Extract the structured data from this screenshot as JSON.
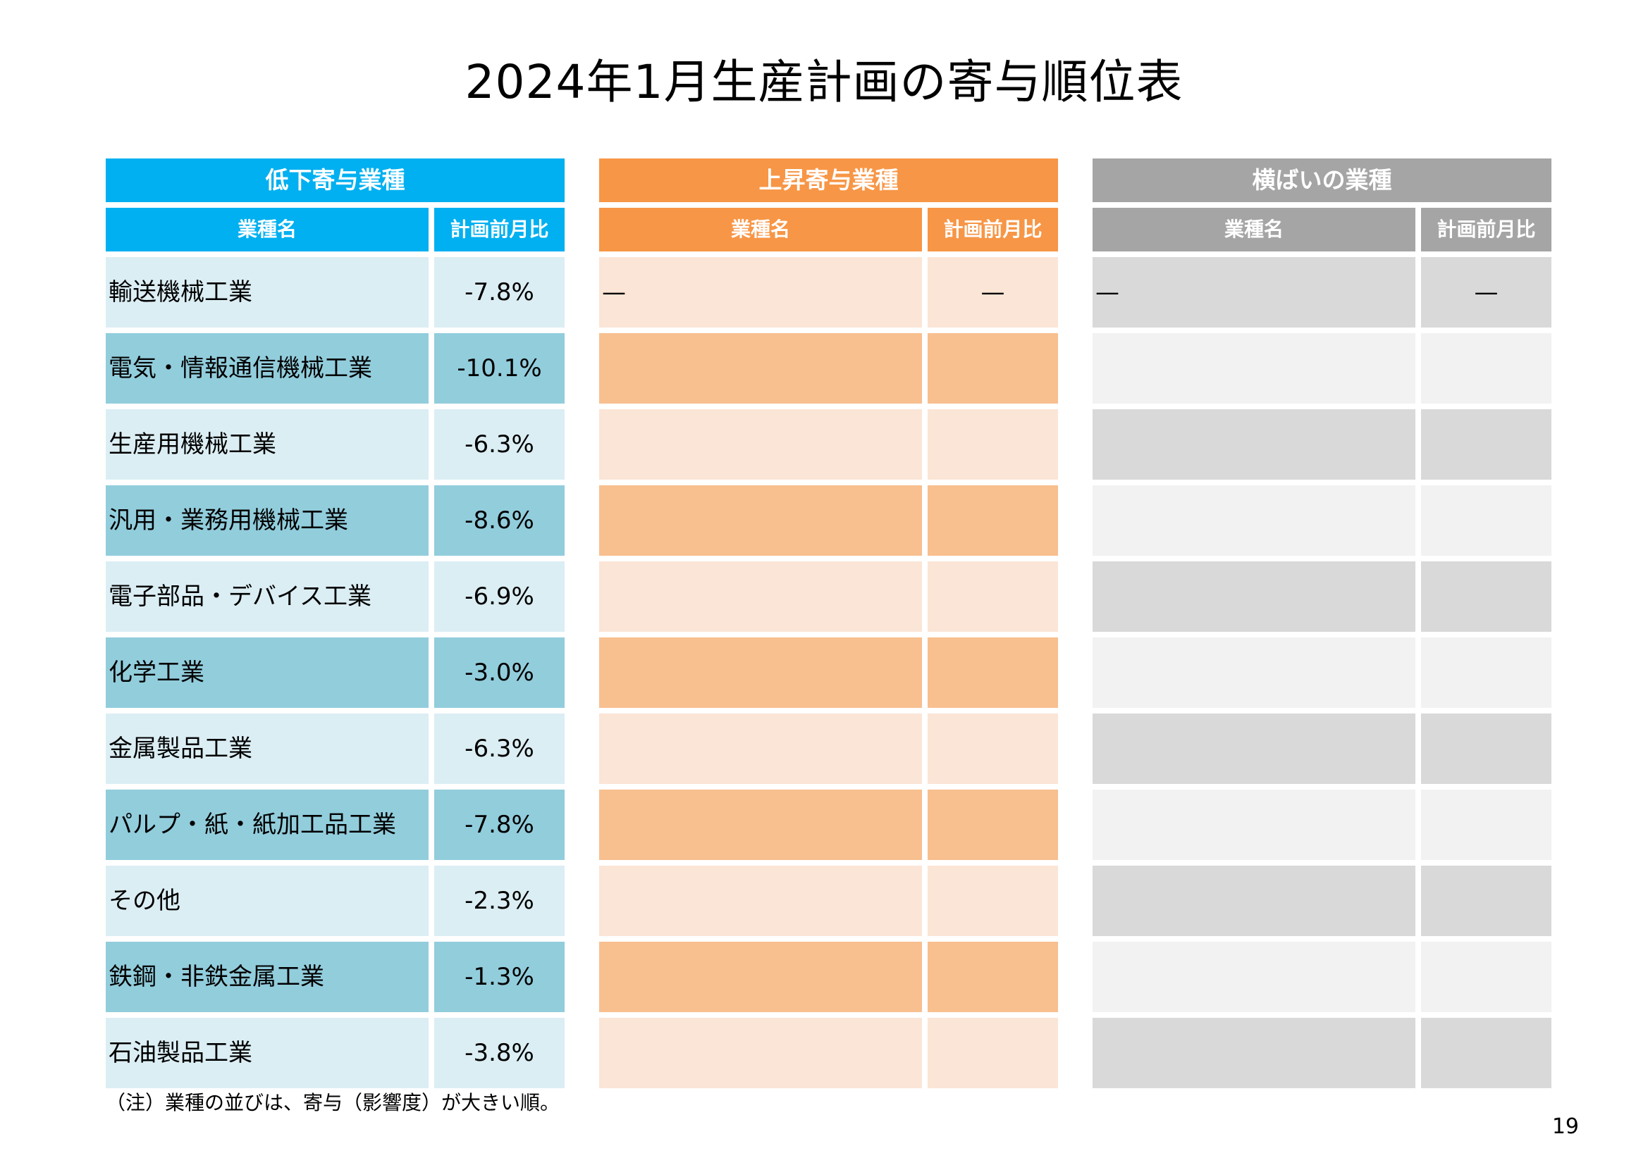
{
  "title": "2024年1月生産計画の寄与順位表",
  "panels": {
    "decrease": {
      "header": "低下寄与業種",
      "col_name": "業種名",
      "col_value": "計画前月比",
      "rows": [
        {
          "name": "輸送機械工業",
          "value": "-7.8%"
        },
        {
          "name": "電気・情報通信機械工業",
          "value": "-10.1%"
        },
        {
          "name": "生産用機械工業",
          "value": "-6.3%"
        },
        {
          "name": "汎用・業務用機械工業",
          "value": "-8.6%"
        },
        {
          "name": "電子部品・デバイス工業",
          "value": "-6.9%"
        },
        {
          "name": "化学工業",
          "value": "-3.0%"
        },
        {
          "name": "金属製品工業",
          "value": "-6.3%"
        },
        {
          "name": "パルプ・紙・紙加工品工業",
          "value": "-7.8%"
        },
        {
          "name": "その他",
          "value": "-2.3%"
        },
        {
          "name": "鉄鋼・非鉄金属工業",
          "value": "-1.3%"
        },
        {
          "name": "石油製品工業",
          "value": "-3.8%"
        }
      ]
    },
    "increase": {
      "header": "上昇寄与業種",
      "col_name": "業種名",
      "col_value": "計画前月比",
      "rows": [
        {
          "name": "—",
          "value": "—"
        },
        {
          "name": "",
          "value": ""
        },
        {
          "name": "",
          "value": ""
        },
        {
          "name": "",
          "value": ""
        },
        {
          "name": "",
          "value": ""
        },
        {
          "name": "",
          "value": ""
        },
        {
          "name": "",
          "value": ""
        },
        {
          "name": "",
          "value": ""
        },
        {
          "name": "",
          "value": ""
        },
        {
          "name": "",
          "value": ""
        },
        {
          "name": "",
          "value": ""
        }
      ]
    },
    "flat": {
      "header": "横ばいの業種",
      "col_name": "業種名",
      "col_value": "計画前月比",
      "rows": [
        {
          "name": "—",
          "value": "—"
        },
        {
          "name": "",
          "value": ""
        },
        {
          "name": "",
          "value": ""
        },
        {
          "name": "",
          "value": ""
        },
        {
          "name": "",
          "value": ""
        },
        {
          "name": "",
          "value": ""
        },
        {
          "name": "",
          "value": ""
        },
        {
          "name": "",
          "value": ""
        },
        {
          "name": "",
          "value": ""
        },
        {
          "name": "",
          "value": ""
        },
        {
          "name": "",
          "value": ""
        }
      ]
    }
  },
  "note": "（注）業種の並びは、寄与（影響度）が大きい順。",
  "page_number": "19"
}
